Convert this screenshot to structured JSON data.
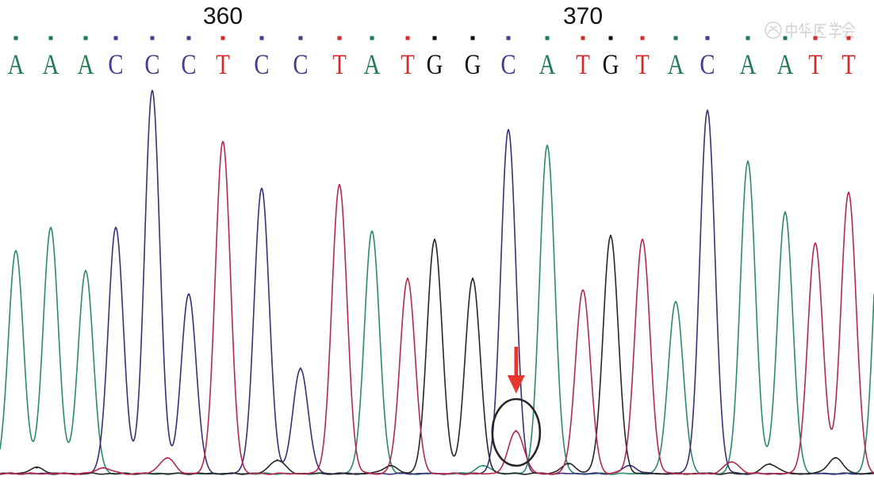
{
  "chart_data": {
    "type": "line",
    "grid": false,
    "position_ticks": [
      {
        "position": 360,
        "label": "360"
      },
      {
        "position": 370,
        "label": "370"
      }
    ],
    "channels": {
      "A": {
        "trace_color": "#2b8a6b",
        "label_color": "#1f7a50"
      },
      "C": {
        "trace_color": "#3b2e74",
        "label_color": "#4a3a8e"
      },
      "G": {
        "trace_color": "#262626",
        "label_color": "#121212"
      },
      "T": {
        "trace_color": "#b3294c",
        "label_color": "#d62a2a"
      }
    },
    "base_calls": [
      {
        "position": 354,
        "base": "A",
        "intensity": 0.57
      },
      {
        "position": 355,
        "base": "A",
        "intensity": 0.63
      },
      {
        "position": 356,
        "base": "A",
        "intensity": 0.52
      },
      {
        "position": 357,
        "base": "C",
        "intensity": 0.63
      },
      {
        "position": 358,
        "base": "C",
        "intensity": 0.98
      },
      {
        "position": 359,
        "base": "C",
        "intensity": 0.46
      },
      {
        "position": 360,
        "base": "T",
        "intensity": 0.85
      },
      {
        "position": 361,
        "base": "C",
        "intensity": 0.73
      },
      {
        "position": 362,
        "base": "C",
        "intensity": 0.27
      },
      {
        "position": 363,
        "base": "T",
        "intensity": 0.74
      },
      {
        "position": 364,
        "base": "A",
        "intensity": 0.62
      },
      {
        "position": 365,
        "base": "T",
        "intensity": 0.5
      },
      {
        "position": 366,
        "base": "G",
        "intensity": 0.6
      },
      {
        "position": 367,
        "base": "G",
        "intensity": 0.5
      },
      {
        "position": 368,
        "base": "C",
        "intensity": 0.88
      },
      {
        "position": 369,
        "base": "A",
        "intensity": 0.84
      },
      {
        "position": 370,
        "base": "T",
        "intensity": 0.47
      },
      {
        "position": 371,
        "base": "G",
        "intensity": 0.61
      },
      {
        "position": 372,
        "base": "T",
        "intensity": 0.6
      },
      {
        "position": 373,
        "base": "A",
        "intensity": 0.44
      },
      {
        "position": 374,
        "base": "C",
        "intensity": 0.93
      },
      {
        "position": 375,
        "base": "A",
        "intensity": 0.8
      },
      {
        "position": 376,
        "base": "A",
        "intensity": 0.67
      },
      {
        "position": 377,
        "base": "T",
        "intensity": 0.59
      },
      {
        "position": 378,
        "base": "T",
        "intensity": 0.72
      }
    ],
    "minor_peaks": [
      {
        "position": 368.2,
        "channel": "T",
        "intensity": 0.11
      },
      {
        "position": 358.4,
        "channel": "T",
        "intensity": 0.04
      },
      {
        "position": 361.4,
        "channel": "G",
        "intensity": 0.035
      },
      {
        "position": 354.6,
        "channel": "G",
        "intensity": 0.015
      },
      {
        "position": 356.6,
        "channel": "T",
        "intensity": 0.015
      },
      {
        "position": 364.5,
        "channel": "G",
        "intensity": 0.02
      },
      {
        "position": 367.3,
        "channel": "A",
        "intensity": 0.02
      },
      {
        "position": 369.6,
        "channel": "G",
        "intensity": 0.025
      },
      {
        "position": 371.6,
        "channel": "C",
        "intensity": 0.02
      },
      {
        "position": 374.6,
        "channel": "T",
        "intensity": 0.03
      },
      {
        "position": 375.6,
        "channel": "G",
        "intensity": 0.025
      },
      {
        "position": 377.6,
        "channel": "G",
        "intensity": 0.04
      }
    ],
    "partial_peaks": [
      {
        "position": 379,
        "channel": "A",
        "intensity": 0.8
      }
    ],
    "annotations": [
      {
        "shape": "arrow-down",
        "position": 368.2,
        "color": "#e5372d"
      },
      {
        "shape": "ellipse",
        "position": 368.2,
        "color": "#262626"
      }
    ]
  },
  "watermark": {
    "text": "中华医学会",
    "color": "#a9a9a9"
  }
}
